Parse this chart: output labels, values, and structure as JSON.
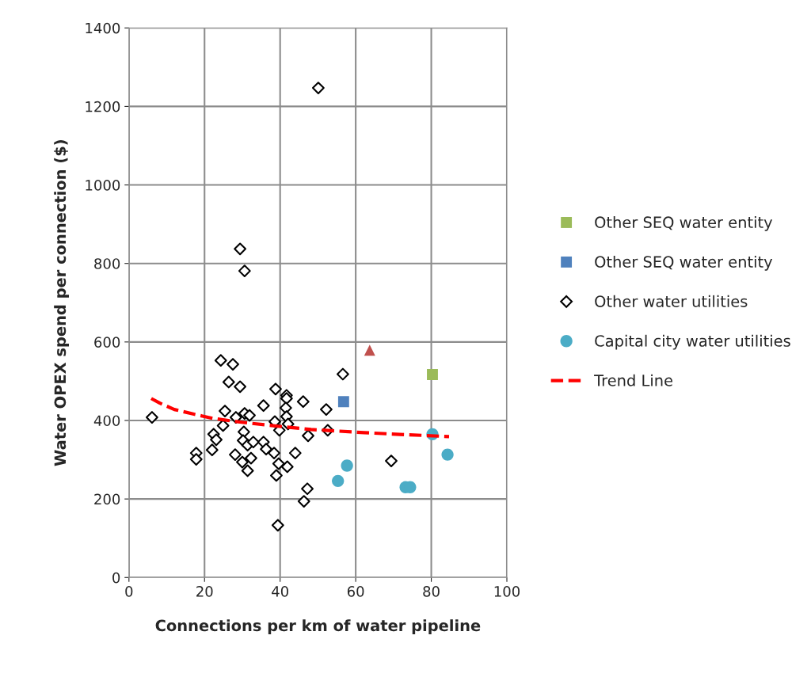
{
  "chart_data": {
    "type": "scatter",
    "xlabel": "Connections per km of water pipeline",
    "ylabel": "Water OPEX spend per connection ($)",
    "xlim": [
      0,
      100
    ],
    "xticks": [
      0,
      20,
      40,
      60,
      80,
      100
    ],
    "ylim": [
      0,
      1400
    ],
    "yticks": [
      0,
      200,
      400,
      600,
      800,
      1000,
      1200,
      1400
    ],
    "grid": true,
    "legend": "right",
    "series": [
      {
        "color": "#c0504d",
        "marker": "triangle",
        "x": [
          63.7
        ],
        "values": [
          579
        ]
      },
      {
        "name": "Other SEQ water entity",
        "color": "#9bbb59",
        "marker": "square",
        "x": [
          80.3
        ],
        "values": [
          517
        ]
      },
      {
        "name": "Other SEQ water entity",
        "color": "#4f81bd",
        "marker": "square",
        "x": [
          56.8
        ],
        "values": [
          448
        ]
      },
      {
        "name": "Other water utilities",
        "color": "#000000",
        "marker": "diamond",
        "x": [
          24.3,
          27.5,
          26.4,
          29.4,
          6.1,
          38.8,
          41.7,
          41.7,
          46.1,
          52.2,
          56.6,
          35.6,
          25.4,
          30.6,
          31.9,
          28.3,
          41.5,
          41.7,
          42.1,
          38.6,
          39.8,
          52.6,
          47.4,
          24.9,
          22.4,
          23.1,
          22.0,
          17.8,
          17.8,
          30.4,
          30.2,
          31.4,
          32.9,
          35.6,
          36.3,
          38.4,
          44.0,
          28.1,
          32.3,
          30.0,
          39.6,
          41.9,
          31.4,
          39.0,
          47.2,
          46.3,
          39.4,
          69.4,
          50.1,
          29.4,
          30.6
        ],
        "values": [
          553,
          543,
          498,
          486,
          408,
          480,
          464,
          456,
          448,
          428,
          518,
          438,
          424,
          418,
          413,
          408,
          432,
          410,
          391,
          397,
          375,
          375,
          361,
          387,
          365,
          351,
          325,
          317,
          301,
          371,
          349,
          337,
          345,
          345,
          327,
          317,
          317,
          313,
          304,
          294,
          290,
          282,
          272,
          260,
          226,
          194,
          133,
          297,
          1247,
          837,
          781
        ]
      },
      {
        "name": "Capital city water utilities",
        "color": "#4bacc6",
        "marker": "circle",
        "x": [
          80.3,
          84.3,
          57.7,
          55.3,
          73.2,
          74.4
        ],
        "values": [
          365,
          313,
          285,
          246,
          230,
          230
        ]
      },
      {
        "name": "Trend Line",
        "type": "line",
        "color": "#ff0000",
        "marker": "none",
        "line_style": "dashed",
        "x": [
          5.9,
          8.2,
          12,
          17.2,
          22.4,
          29.4,
          37.7,
          48.2,
          62.3,
          70.6,
          84.7
        ],
        "values": [
          456,
          444,
          428,
          416,
          405,
          396,
          387,
          377,
          369,
          365,
          359
        ]
      }
    ]
  }
}
